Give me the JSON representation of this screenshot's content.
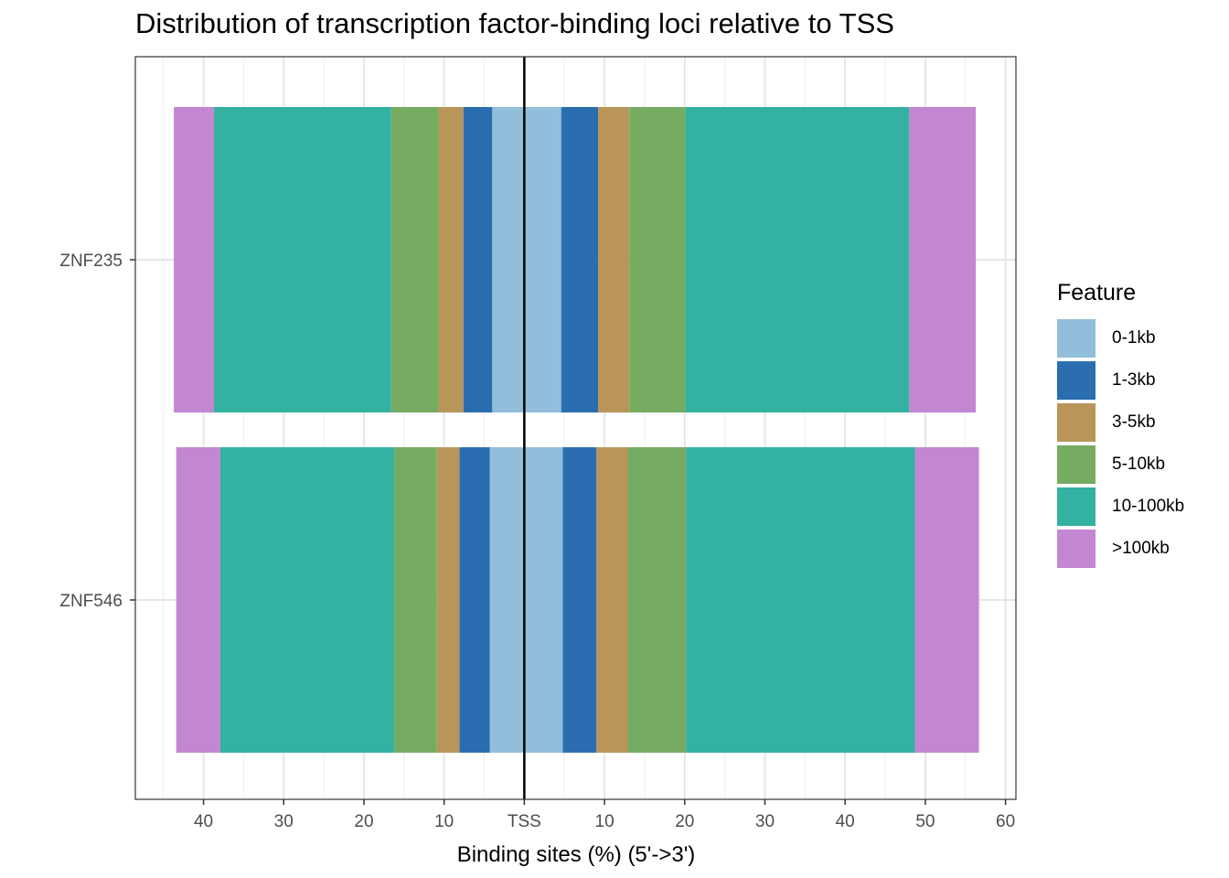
{
  "title": "Distribution of transcription factor-binding loci relative to TSS",
  "chart_data": {
    "type": "bar",
    "orientation": "horizontal",
    "title": "Distribution of transcription factor-binding loci relative to TSS",
    "xlabel": "Binding sites (%) (5'->3')",
    "ylabel": "",
    "x_ticks": [
      "40",
      "30",
      "20",
      "10",
      "TSS",
      "10",
      "20",
      "30",
      "40",
      "50",
      "60"
    ],
    "x_tick_values": [
      -40,
      -30,
      -20,
      -10,
      0,
      10,
      20,
      30,
      40,
      50,
      60
    ],
    "xlim": [
      -48.5,
      61.3
    ],
    "categories": [
      "ZNF235",
      "ZNF546"
    ],
    "legend_title": "Feature",
    "legend_position": "right",
    "grid": true,
    "colors": {
      "0-1kb": "#92BEDB",
      "1-3kb": "#2A6EB0",
      "3-5kb": "#BA955A",
      "5-10kb": "#76AB62",
      "10-100kb": "#33B2A2",
      ">100kb": "#C387D1"
    },
    "features": [
      "0-1kb",
      "1-3kb",
      "3-5kb",
      "5-10kb",
      "10-100kb",
      ">100kb"
    ],
    "series": [
      {
        "name": "0-1kb",
        "upstream": [
          4.0,
          4.3
        ],
        "downstream": [
          4.6,
          4.8
        ]
      },
      {
        "name": "1-3kb",
        "upstream": [
          3.6,
          3.8
        ],
        "downstream": [
          4.6,
          4.2
        ]
      },
      {
        "name": "3-5kb",
        "upstream": [
          3.1,
          2.8
        ],
        "downstream": [
          3.9,
          3.9
        ]
      },
      {
        "name": "5-10kb",
        "upstream": [
          5.9,
          5.3
        ],
        "downstream": [
          7.0,
          7.3
        ]
      },
      {
        "name": "10-100kb",
        "upstream": [
          22.1,
          21.7
        ],
        "downstream": [
          27.9,
          28.5
        ]
      },
      {
        "name": ">100kb",
        "upstream": [
          5.0,
          5.5
        ],
        "downstream": [
          8.3,
          8.0
        ]
      }
    ]
  }
}
